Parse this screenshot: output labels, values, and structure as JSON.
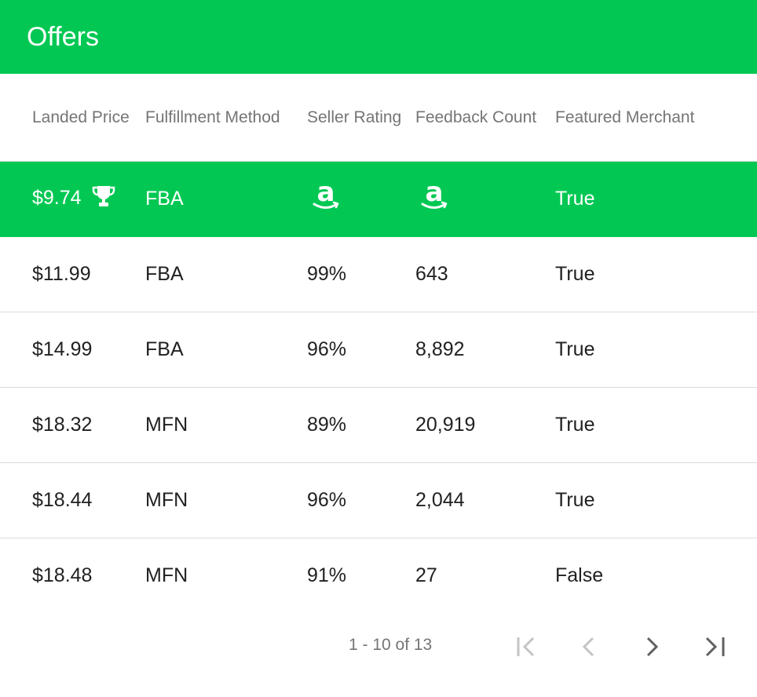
{
  "header": {
    "title": "Offers"
  },
  "table": {
    "columns": [
      "Landed Price",
      "Fulfillment Method",
      "Seller Rating",
      "Feedback Count",
      "Featured Merchant"
    ],
    "featured_row": {
      "price": "$9.74",
      "fulfillment": "FBA",
      "seller_rating_icon": "amazon-logo-icon",
      "feedback_icon": "amazon-logo-icon",
      "featured": "True",
      "badge_icon": "trophy-icon"
    },
    "rows": [
      {
        "price": "$11.99",
        "fulfillment": "FBA",
        "rating": "99%",
        "feedback": "643",
        "featured": "True"
      },
      {
        "price": "$14.99",
        "fulfillment": "FBA",
        "rating": "96%",
        "feedback": "8,892",
        "featured": "True"
      },
      {
        "price": "$18.32",
        "fulfillment": "MFN",
        "rating": "89%",
        "feedback": "20,919",
        "featured": "True"
      },
      {
        "price": "$18.44",
        "fulfillment": "MFN",
        "rating": "96%",
        "feedback": "2,044",
        "featured": "True"
      },
      {
        "price": "$18.48",
        "fulfillment": "MFN",
        "rating": "91%",
        "feedback": "27",
        "featured": "False"
      }
    ]
  },
  "pagination": {
    "range_label": "1 - 10 of 13",
    "icons": [
      "first-page-icon",
      "previous-page-icon",
      "next-page-icon",
      "last-page-icon"
    ]
  },
  "colors": {
    "accent": "#02c853",
    "header_text": "#757575",
    "body_text": "#212121",
    "divider": "#dcdcdc",
    "disabled_icon": "#c4c4c4",
    "active_icon": "#616161"
  }
}
